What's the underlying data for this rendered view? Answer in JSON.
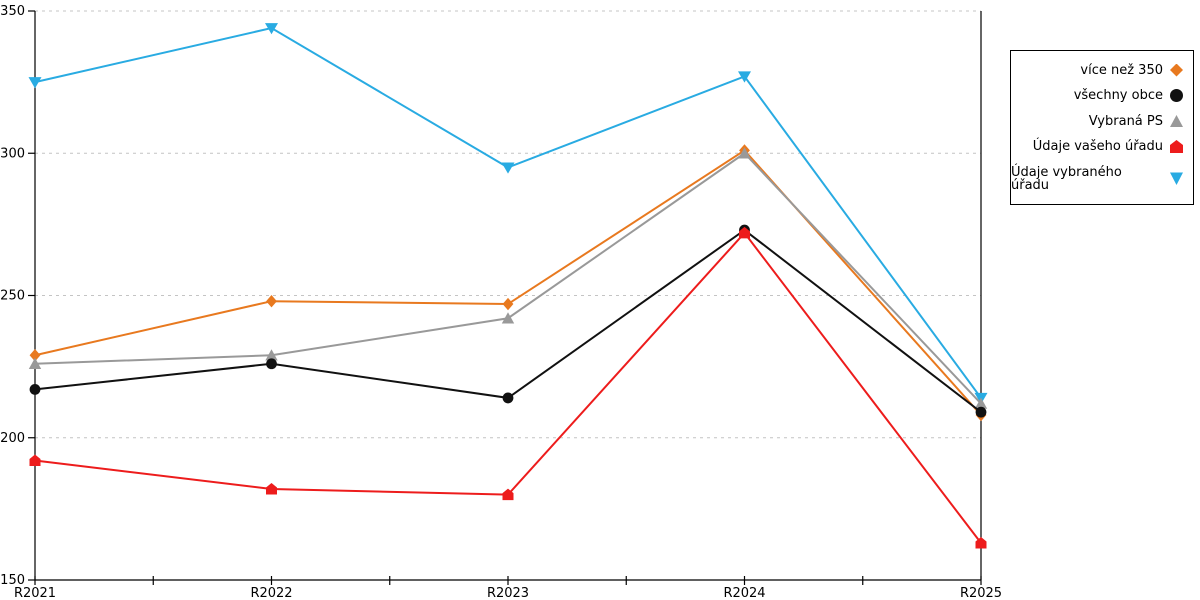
{
  "chart_data": {
    "type": "line",
    "title": "",
    "xlabel": "",
    "ylabel": "",
    "categories": [
      "R2021",
      "R2022",
      "R2023",
      "R2024",
      "R2025"
    ],
    "series": [
      {
        "name": "více než 350",
        "marker": "diamond",
        "color": "#E8791F",
        "values": [
          229,
          248,
          247,
          301,
          208
        ]
      },
      {
        "name": "všechny obce",
        "marker": "circle",
        "color": "#111111",
        "values": [
          217,
          226,
          214,
          273,
          209
        ]
      },
      {
        "name": "Vybraná PS",
        "marker": "triangle-up",
        "color": "#999999",
        "values": [
          226,
          229,
          242,
          300,
          212
        ]
      },
      {
        "name": "Údaje vašeho úřadu",
        "marker": "house",
        "color": "#ED1C1C",
        "values": [
          192,
          182,
          180,
          272,
          163
        ]
      },
      {
        "name": "Údaje vybraného úřadu",
        "marker": "triangle-down",
        "color": "#29ABE2",
        "values": [
          325,
          344,
          295,
          327,
          214
        ]
      }
    ],
    "draw_order": [
      4,
      0,
      2,
      1,
      3
    ],
    "ylim": [
      150,
      350
    ],
    "yticks": [
      "150",
      "200",
      "250",
      "300",
      "350"
    ],
    "grid": "horizontal-dashed",
    "gridline_color": "#C4C4C4",
    "axis_color": "#000000",
    "legend_position": "right-outside",
    "legend_border_color": "#000000"
  }
}
